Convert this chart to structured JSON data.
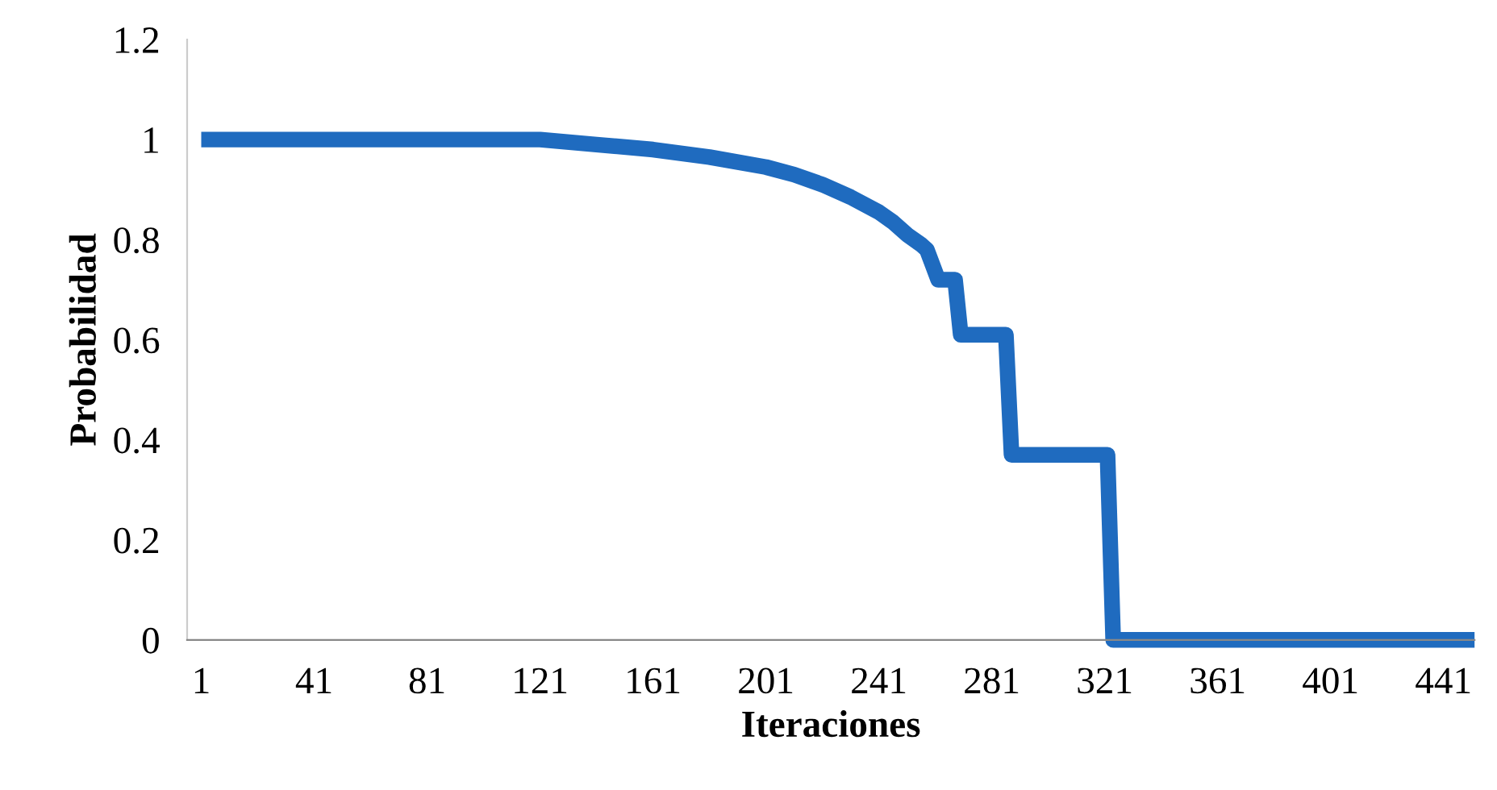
{
  "chart_data": {
    "type": "line",
    "xlabel": "Iteraciones",
    "ylabel": "Probabilidad",
    "x": [
      1,
      41,
      81,
      121,
      141,
      161,
      181,
      201,
      211,
      221,
      231,
      241,
      246,
      251,
      256,
      258,
      262,
      268,
      270,
      286,
      288,
      322,
      324,
      452
    ],
    "series": [
      {
        "color": "#1f6bbf",
        "values": [
          1.0,
          1.0,
          1.0,
          1.0,
          0.99,
          0.98,
          0.965,
          0.945,
          0.93,
          0.91,
          0.885,
          0.855,
          0.835,
          0.81,
          0.79,
          0.78,
          0.72,
          0.72,
          0.61,
          0.61,
          0.37,
          0.37,
          0,
          0
        ]
      }
    ],
    "xlim": [
      -4,
      452
    ],
    "xticks": [
      1,
      41,
      81,
      121,
      161,
      201,
      241,
      281,
      321,
      361,
      401,
      441
    ],
    "ylim": [
      0,
      1.2
    ],
    "yticks": [
      0,
      0.2,
      0.4,
      0.6,
      0.8,
      1,
      1.2
    ],
    "grid": false,
    "legend": false,
    "marker": "none",
    "line_style": "solid"
  }
}
